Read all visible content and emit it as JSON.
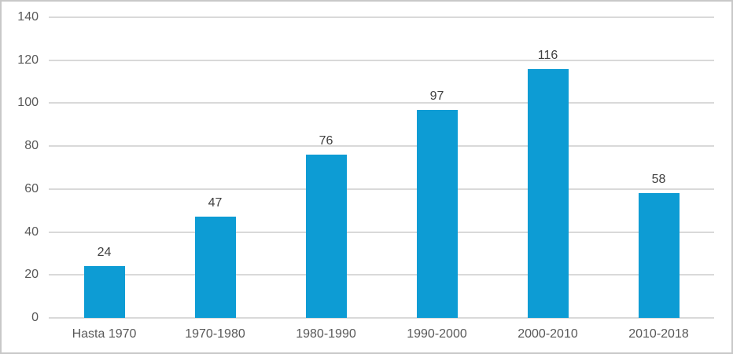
{
  "chart_data": {
    "type": "bar",
    "categories": [
      "Hasta 1970",
      "1970-1980",
      "1980-1990",
      "1990-2000",
      "2000-2010",
      "2010-2018"
    ],
    "values": [
      24,
      47,
      76,
      97,
      116,
      58
    ],
    "title": "",
    "xlabel": "",
    "ylabel": "",
    "ylim": [
      0,
      140
    ],
    "yticks": [
      0,
      20,
      40,
      60,
      80,
      100,
      120,
      140
    ],
    "grid": true,
    "legend": false,
    "colors": {
      "bar": "#0d9cd4",
      "gridline": "#d9d9d9",
      "axis_line": "#d9d9d9",
      "tick_label": "#595959",
      "category_label": "#595959",
      "data_label": "#404040",
      "frame_border": "#c8c8c8",
      "background": "#ffffff"
    }
  }
}
